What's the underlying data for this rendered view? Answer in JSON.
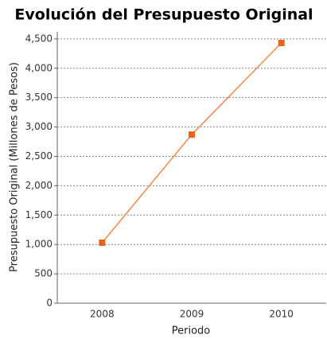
{
  "chart_data": {
    "type": "line",
    "title": "Evolución del Presupuesto Original",
    "x_label": "Periodo",
    "y_label": "Presupuesto Original (Millones de Pesos)",
    "categories": [
      "2008",
      "2009",
      "2010"
    ],
    "series": [
      {
        "name": "Presupuesto Original",
        "color": "#f4874b",
        "marker_color": "#e8641b",
        "values": [
          1030,
          2870,
          4430
        ]
      }
    ],
    "ylim": [
      0,
      4620
    ],
    "yticks": [
      0,
      500,
      {
        "value": 1000,
        "label": "1,000"
      },
      {
        "value": 1500,
        "label": "1,500"
      },
      {
        "value": 2000,
        "label": "2,000"
      },
      {
        "value": 2500,
        "label": "2,500"
      },
      {
        "value": 3000,
        "label": "3,000"
      },
      {
        "value": 3500,
        "label": "3,500"
      },
      {
        "value": 4000,
        "label": "4,000"
      },
      {
        "value": 4500,
        "label": "4,500"
      }
    ],
    "grid": true
  }
}
